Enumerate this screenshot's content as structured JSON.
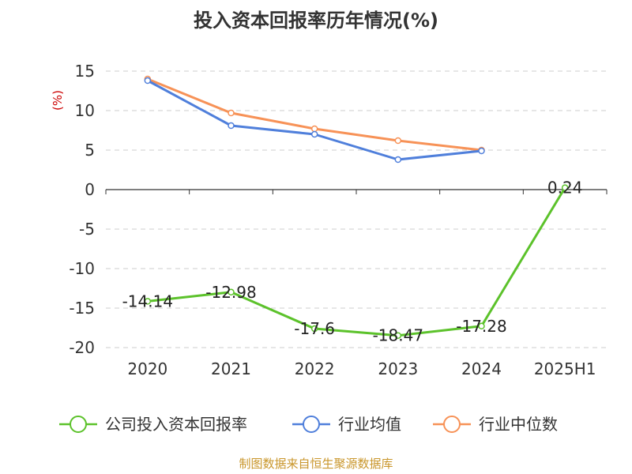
{
  "chart_data": {
    "type": "line",
    "title": "投入资本回报率历年情况(%)",
    "ylabel": "(%)",
    "xlabel": "",
    "categories": [
      "2020",
      "2021",
      "2022",
      "2023",
      "2024",
      "2025H1"
    ],
    "ylim": [
      -20,
      15
    ],
    "yticks": [
      15,
      10,
      5,
      0,
      -5,
      -10,
      -15,
      -20
    ],
    "grid": true,
    "legend_position": "bottom",
    "series": [
      {
        "name": "公司投入资本回报率",
        "color": "#5cc22b",
        "values": [
          -14.14,
          -12.98,
          -17.6,
          -18.47,
          -17.28,
          0.24
        ],
        "labels": [
          "-14.14",
          "-12.98",
          "-17.6",
          "-18.47",
          "-17.28",
          "0.24"
        ]
      },
      {
        "name": "行业均值",
        "color": "#4f7fdb",
        "values": [
          13.8,
          8.1,
          7.0,
          3.8,
          4.9,
          null
        ]
      },
      {
        "name": "行业中位数",
        "color": "#f79257",
        "values": [
          14.0,
          9.7,
          7.7,
          6.2,
          5.0,
          null
        ]
      }
    ],
    "source": "制图数据来自恒生聚源数据库"
  }
}
